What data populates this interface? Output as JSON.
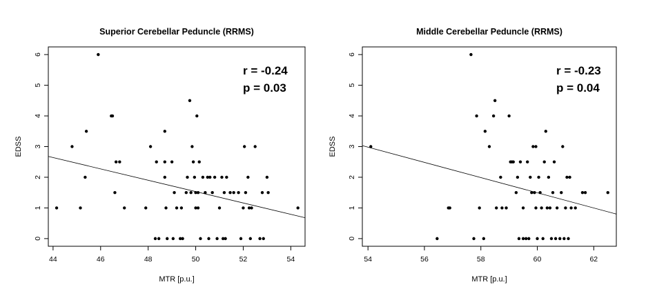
{
  "chart_data": [
    {
      "type": "scatter",
      "title": "Superior Cerebellar Peduncle (RRMS)",
      "xlabel": "MTR [p.u.]",
      "ylabel": "EDSS",
      "xlim": [
        43.8,
        54.6
      ],
      "ylim": [
        -0.25,
        6.25
      ],
      "xticks": [
        "44",
        "46",
        "48",
        "50",
        "52",
        "54"
      ],
      "yticks": [
        "0",
        "1",
        "2",
        "3",
        "4",
        "5",
        "6"
      ],
      "annotations": [
        "r = -0.24",
        "p = 0.03"
      ],
      "trend_line": {
        "x": [
          43.8,
          54.6
        ],
        "y": [
          2.68,
          0.68
        ]
      },
      "points": [
        [
          44.15,
          1
        ],
        [
          44.8,
          3
        ],
        [
          45.15,
          1
        ],
        [
          45.35,
          2
        ],
        [
          45.4,
          3.5
        ],
        [
          45.9,
          6
        ],
        [
          46.45,
          4
        ],
        [
          46.5,
          4
        ],
        [
          46.6,
          1.5
        ],
        [
          46.65,
          2.5
        ],
        [
          46.8,
          2.5
        ],
        [
          47.0,
          1
        ],
        [
          47.9,
          1
        ],
        [
          48.1,
          3
        ],
        [
          48.3,
          0
        ],
        [
          48.35,
          2.5
        ],
        [
          48.45,
          0
        ],
        [
          48.7,
          3.5
        ],
        [
          48.7,
          2.5
        ],
        [
          48.7,
          2
        ],
        [
          48.75,
          1
        ],
        [
          48.8,
          0
        ],
        [
          49.0,
          2.5
        ],
        [
          49.05,
          0
        ],
        [
          49.1,
          1.5
        ],
        [
          49.2,
          1
        ],
        [
          49.35,
          0
        ],
        [
          49.4,
          1
        ],
        [
          49.45,
          0
        ],
        [
          49.6,
          1.5
        ],
        [
          49.65,
          2
        ],
        [
          49.75,
          4.5
        ],
        [
          49.8,
          1.5
        ],
        [
          49.85,
          3
        ],
        [
          49.9,
          2.5
        ],
        [
          49.95,
          2
        ],
        [
          50.0,
          1.5
        ],
        [
          50.0,
          1
        ],
        [
          50.05,
          4
        ],
        [
          50.1,
          1.5
        ],
        [
          50.1,
          1
        ],
        [
          50.15,
          2.5
        ],
        [
          50.2,
          0
        ],
        [
          50.3,
          2
        ],
        [
          50.4,
          1.5
        ],
        [
          50.5,
          2
        ],
        [
          50.55,
          0
        ],
        [
          50.6,
          2
        ],
        [
          50.7,
          1.5
        ],
        [
          50.8,
          2
        ],
        [
          50.9,
          0
        ],
        [
          51.0,
          1
        ],
        [
          51.1,
          2
        ],
        [
          51.15,
          0
        ],
        [
          51.2,
          1.5
        ],
        [
          51.25,
          0
        ],
        [
          51.3,
          2
        ],
        [
          51.45,
          1.5
        ],
        [
          51.6,
          1.5
        ],
        [
          51.8,
          1.5
        ],
        [
          51.9,
          0
        ],
        [
          52.0,
          1
        ],
        [
          52.05,
          3
        ],
        [
          52.1,
          1.5
        ],
        [
          52.2,
          2
        ],
        [
          52.25,
          1
        ],
        [
          52.3,
          0
        ],
        [
          52.35,
          1
        ],
        [
          52.5,
          3
        ],
        [
          52.7,
          0
        ],
        [
          52.8,
          1.5
        ],
        [
          52.85,
          0
        ],
        [
          53.0,
          2
        ],
        [
          53.05,
          1.5
        ],
        [
          54.3,
          1
        ]
      ]
    },
    {
      "type": "scatter",
      "title": "Middle Cerebellar Peduncle (RRMS)",
      "xlabel": "MTR [p.u.]",
      "ylabel": "EDSS",
      "xlim": [
        53.8,
        62.8
      ],
      "ylim": [
        -0.25,
        6.25
      ],
      "xticks": [
        "54",
        "56",
        "58",
        "60",
        "62"
      ],
      "yticks": [
        "0",
        "1",
        "2",
        "3",
        "4",
        "5",
        "6"
      ],
      "annotations": [
        "r = -0.23",
        "p = 0.04"
      ],
      "trend_line": {
        "x": [
          53.8,
          62.8
        ],
        "y": [
          3.03,
          0.8
        ]
      },
      "points": [
        [
          54.1,
          3
        ],
        [
          56.45,
          0
        ],
        [
          56.85,
          1
        ],
        [
          56.9,
          1
        ],
        [
          57.65,
          6
        ],
        [
          57.75,
          0
        ],
        [
          57.85,
          4
        ],
        [
          57.95,
          1
        ],
        [
          58.1,
          0
        ],
        [
          58.15,
          3.5
        ],
        [
          58.3,
          3
        ],
        [
          58.45,
          4
        ],
        [
          58.5,
          4.5
        ],
        [
          58.55,
          1
        ],
        [
          58.7,
          2
        ],
        [
          58.75,
          1
        ],
        [
          58.9,
          1
        ],
        [
          59.0,
          4
        ],
        [
          59.05,
          2.5
        ],
        [
          59.1,
          2.5
        ],
        [
          59.15,
          2.5
        ],
        [
          59.25,
          1.5
        ],
        [
          59.3,
          2
        ],
        [
          59.35,
          0
        ],
        [
          59.4,
          2.5
        ],
        [
          59.5,
          0
        ],
        [
          59.5,
          1
        ],
        [
          59.6,
          0
        ],
        [
          59.65,
          2.5
        ],
        [
          59.7,
          0
        ],
        [
          59.75,
          2
        ],
        [
          59.8,
          1.5
        ],
        [
          59.85,
          3
        ],
        [
          59.9,
          1.5
        ],
        [
          59.95,
          3
        ],
        [
          59.95,
          1
        ],
        [
          60.0,
          0
        ],
        [
          60.05,
          2
        ],
        [
          60.1,
          1.5
        ],
        [
          60.15,
          1
        ],
        [
          60.2,
          0
        ],
        [
          60.25,
          2.5
        ],
        [
          60.3,
          3.5
        ],
        [
          60.35,
          1
        ],
        [
          60.4,
          2
        ],
        [
          60.45,
          1
        ],
        [
          60.5,
          0
        ],
        [
          60.55,
          1.5
        ],
        [
          60.6,
          2.5
        ],
        [
          60.65,
          0
        ],
        [
          60.7,
          1
        ],
        [
          60.8,
          0
        ],
        [
          60.85,
          1.5
        ],
        [
          60.9,
          3
        ],
        [
          60.95,
          0
        ],
        [
          61.0,
          1
        ],
        [
          61.05,
          2
        ],
        [
          61.1,
          0
        ],
        [
          61.15,
          2
        ],
        [
          61.2,
          1
        ],
        [
          61.35,
          1
        ],
        [
          61.6,
          1.5
        ],
        [
          61.7,
          1.5
        ],
        [
          62.5,
          1.5
        ]
      ]
    }
  ]
}
